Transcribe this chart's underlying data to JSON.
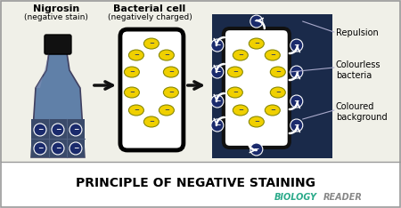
{
  "title": "PRINCIPLE OF NEGATIVE STAINING",
  "bg_color": "#f0f0e8",
  "dark_bg": "#1a2a4a",
  "bottle_label1": "Nigrosin",
  "bottle_label2": "(negative stain)",
  "cell_label1": "Bacterial cell",
  "cell_label2": "(negatively charged)",
  "label_repulsion": "Repulsion",
  "label_colourless": "Colourless\nbacteria",
  "label_coloured": "Coloured\nbackground",
  "biology_color": "#2aaa8a",
  "reader_color": "#888888",
  "bottle_body_color": "#6080a8",
  "bottle_cap_color": "#111111",
  "bottle_bottom_color": "#3a4a6a",
  "minus_fill": "#1a2a6c",
  "bact_fill": "#f0d000",
  "bact_edge": "#888800",
  "arrow_color": "#111111",
  "white_cell_border": "#111111"
}
